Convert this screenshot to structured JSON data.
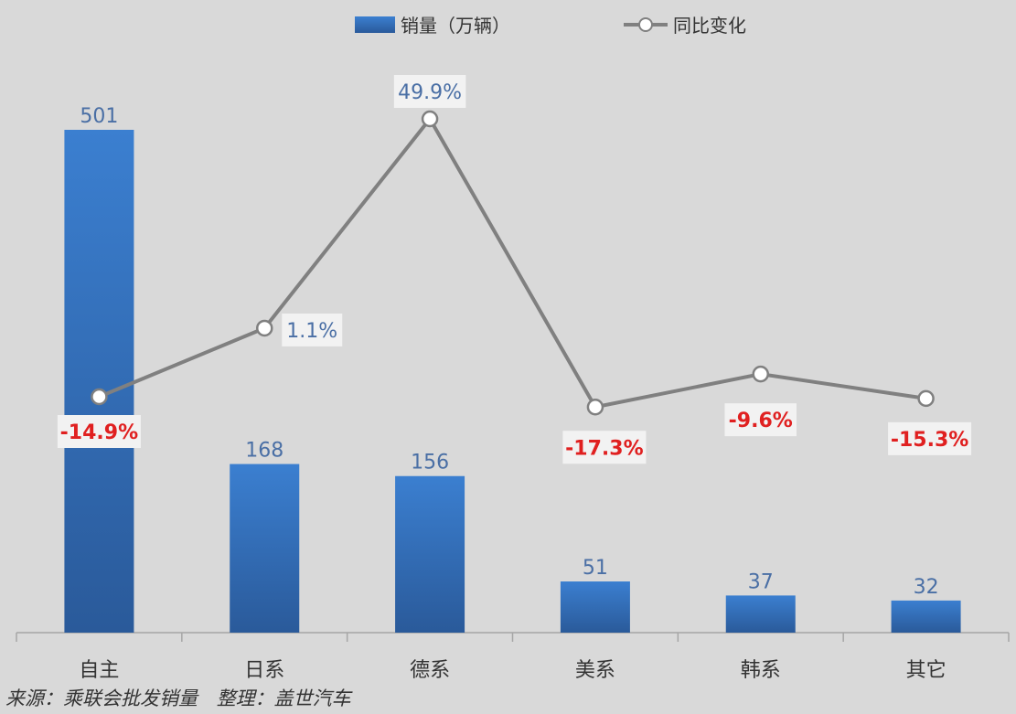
{
  "legend": {
    "bar_label": "销量（万辆）",
    "line_label": "同比变化"
  },
  "footer": {
    "source": "来源：乘联会批发销量",
    "editor": "整理：盖世汽车"
  },
  "colors": {
    "background": "#d9d9d9",
    "bar_top": "#3b7fd0",
    "bar_bottom": "#2a5a9a",
    "line": "#808080",
    "positive_label": "#4a6fa5",
    "negative_label": "#e02020"
  },
  "chart_data": {
    "type": "bar",
    "categories": [
      "自主",
      "日系",
      "德系",
      "美系",
      "韩系",
      "其它"
    ],
    "series": [
      {
        "name": "销量（万辆）",
        "type": "bar",
        "axis": "left",
        "values": [
          501,
          168,
          156,
          51,
          37,
          32
        ],
        "labels": [
          "501",
          "168",
          "156",
          "51",
          "37",
          "32"
        ]
      },
      {
        "name": "同比变化",
        "type": "line",
        "axis": "right",
        "values": [
          -14.9,
          1.1,
          49.9,
          -17.3,
          -9.6,
          -15.3
        ],
        "labels": [
          "-14.9%",
          "1.1%",
          "49.9%",
          "-17.3%",
          "-9.6%",
          "-15.3%"
        ]
      }
    ],
    "legend_position": "top-center",
    "grid": false
  }
}
